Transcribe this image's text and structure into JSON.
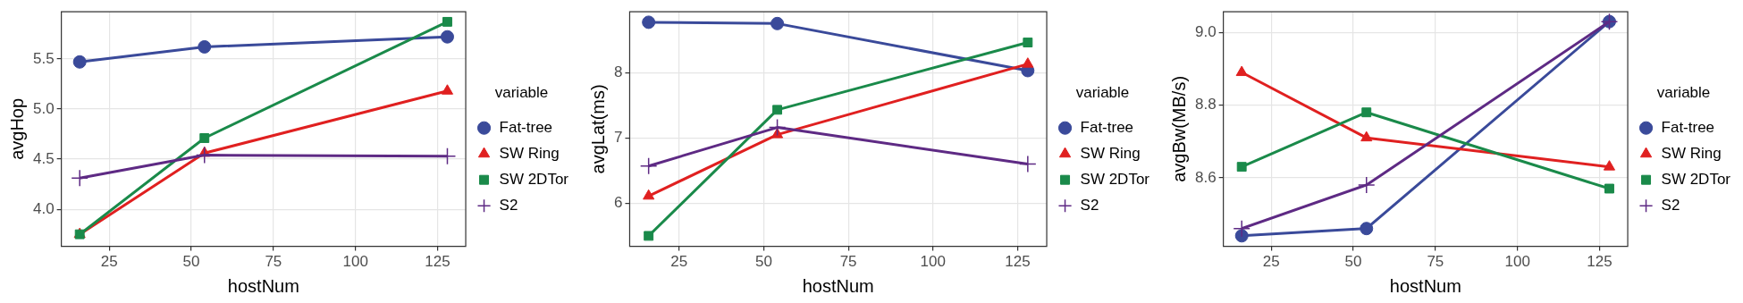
{
  "chart_data": [
    {
      "type": "line",
      "xlabel": "hostNum",
      "ylabel": "avgHop",
      "legend_title": "variable",
      "legend": "right",
      "grid": true,
      "xlim": [
        10.4,
        133.6
      ],
      "xticks": [
        25,
        50,
        75,
        100,
        125
      ],
      "ylim": [
        3.63,
        5.97
      ],
      "yticks": [
        {
          "value": 4.0,
          "label": "4.0"
        },
        4.5,
        {
          "value": 5.0,
          "label": "5.0"
        },
        5.5
      ],
      "x": [
        16,
        54,
        128
      ],
      "series": [
        {
          "name": "Fat-tree",
          "color": "#3a4a9a",
          "marker": "circle",
          "values": [
            5.47,
            5.62,
            5.72
          ]
        },
        {
          "name": "SW Ring",
          "color": "#e02020",
          "marker": "triangle",
          "values": [
            3.75,
            4.56,
            5.18
          ]
        },
        {
          "name": "SW 2DTor",
          "color": "#1a8a4a",
          "marker": "square",
          "values": [
            3.75,
            4.71,
            5.87
          ]
        },
        {
          "name": "S2",
          "color": "#5e2a84",
          "marker": "cross",
          "values": [
            4.31,
            4.54,
            4.53
          ]
        }
      ]
    },
    {
      "type": "line",
      "xlabel": "hostNum",
      "ylabel": "avgLat(ms)",
      "legend_title": "variable",
      "legend": "right",
      "grid": true,
      "xlim": [
        10.4,
        133.6
      ],
      "xticks": [
        25,
        50,
        75,
        100,
        125
      ],
      "ylim": [
        5.34,
        8.93
      ],
      "yticks": [
        6,
        7,
        8
      ],
      "x": [
        16,
        54,
        128
      ],
      "series": [
        {
          "name": "Fat-tree",
          "color": "#3a4a9a",
          "marker": "circle",
          "values": [
            8.77,
            8.75,
            8.03
          ]
        },
        {
          "name": "SW Ring",
          "color": "#e02020",
          "marker": "triangle",
          "values": [
            6.11,
            7.05,
            8.13
          ]
        },
        {
          "name": "SW 2DTor",
          "color": "#1a8a4a",
          "marker": "square",
          "values": [
            5.5,
            7.43,
            8.46
          ]
        },
        {
          "name": "S2",
          "color": "#5e2a84",
          "marker": "cross",
          "values": [
            6.57,
            7.16,
            6.6
          ]
        }
      ]
    },
    {
      "type": "line",
      "xlabel": "hostNum",
      "ylabel": "avgBw(MB/s)",
      "legend_title": "variable",
      "legend": "right",
      "grid": true,
      "xlim": [
        10.4,
        133.6
      ],
      "xticks": [
        25,
        50,
        75,
        100,
        125
      ],
      "ylim": [
        8.411,
        9.057
      ],
      "yticks": [
        {
          "value": 8.6,
          "label": "8.6"
        },
        {
          "value": 8.8,
          "label": "8.8"
        },
        {
          "value": 9.0,
          "label": "9.0"
        }
      ],
      "x": [
        16,
        54,
        128
      ],
      "series": [
        {
          "name": "Fat-tree",
          "color": "#3a4a9a",
          "marker": "circle",
          "values": [
            8.44,
            8.46,
            9.03
          ]
        },
        {
          "name": "SW Ring",
          "color": "#e02020",
          "marker": "triangle",
          "values": [
            8.89,
            8.71,
            8.63
          ]
        },
        {
          "name": "SW 2DTor",
          "color": "#1a8a4a",
          "marker": "square",
          "values": [
            8.63,
            8.78,
            8.57
          ]
        },
        {
          "name": "S2",
          "color": "#5e2a84",
          "marker": "cross",
          "values": [
            8.46,
            8.58,
            9.03
          ]
        }
      ]
    }
  ]
}
